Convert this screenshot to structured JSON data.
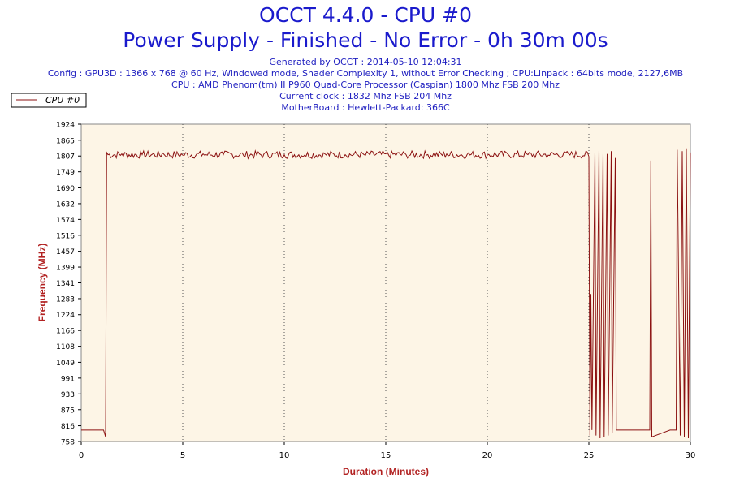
{
  "header": {
    "title": "OCCT 4.4.0 - CPU #0",
    "subtitle": "Power Supply - Finished - No Error - 0h 30m 00s",
    "info_lines": [
      "Generated by OCCT : 2014-05-10 12:04:31",
      "Config : GPU3D : 1366 x 768 @ 60 Hz, Windowed mode, Shader Complexity 1, without Error Checking ; CPU:Linpack : 64bits mode, 2127,6MB",
      "CPU : AMD Phenom(tm) II P960 Quad-Core Processor (Caspian) 1800 Mhz FSB 200 Mhz",
      "Current clock : 1832 Mhz FSB 204 Mhz",
      "MotherBoard : Hewlett-Packard: 366C"
    ]
  },
  "colors": {
    "line": "#8b1010",
    "plot_background": "#fdf5e6",
    "axis_label": "#b22222",
    "title": "#1a1acc"
  },
  "chart_data": {
    "type": "line",
    "xlabel": "Duration (Minutes)",
    "ylabel": "Frequency (MHz)",
    "xlim": [
      0,
      30
    ],
    "ylim": [
      758,
      1924
    ],
    "x_ticks": [
      0,
      5,
      10,
      15,
      20,
      25,
      30
    ],
    "y_ticks": [
      758,
      816,
      875,
      933,
      991,
      1049,
      1108,
      1166,
      1224,
      1283,
      1341,
      1399,
      1457,
      1516,
      1574,
      1632,
      1690,
      1749,
      1807,
      1865,
      1924
    ],
    "grid": "vertical dotted at major x ticks",
    "legend_position": "top-left",
    "series": [
      {
        "name": "CPU #0",
        "x": [
          0,
          1.1,
          1.2,
          1.25,
          2,
          3,
          4,
          5,
          6,
          7,
          8,
          9,
          10,
          11,
          12,
          13,
          14,
          15,
          16,
          17,
          18,
          19,
          20,
          21,
          22,
          23,
          24,
          25,
          25.05,
          25.1,
          25.15,
          25.3,
          25.35,
          25.5,
          25.55,
          25.7,
          25.75,
          25.9,
          25.95,
          26.1,
          26.15,
          26.3,
          26.35,
          27,
          28,
          28.05,
          28.1,
          29,
          29.3,
          29.35,
          29.5,
          29.6,
          29.7,
          29.8,
          29.9,
          30
        ],
        "values": [
          800,
          800,
          775,
          1820,
          1815,
          1812,
          1818,
          1810,
          1815,
          1812,
          1808,
          1815,
          1812,
          1810,
          1815,
          1812,
          1810,
          1815,
          1812,
          1810,
          1815,
          1812,
          1810,
          1815,
          1812,
          1810,
          1815,
          1805,
          780,
          1300,
          800,
          1825,
          780,
          1830,
          770,
          1820,
          775,
          1815,
          780,
          1825,
          790,
          1800,
          800,
          800,
          800,
          1790,
          775,
          800,
          800,
          1830,
          780,
          1825,
          775,
          1835,
          770,
          1820
        ]
      }
    ]
  }
}
